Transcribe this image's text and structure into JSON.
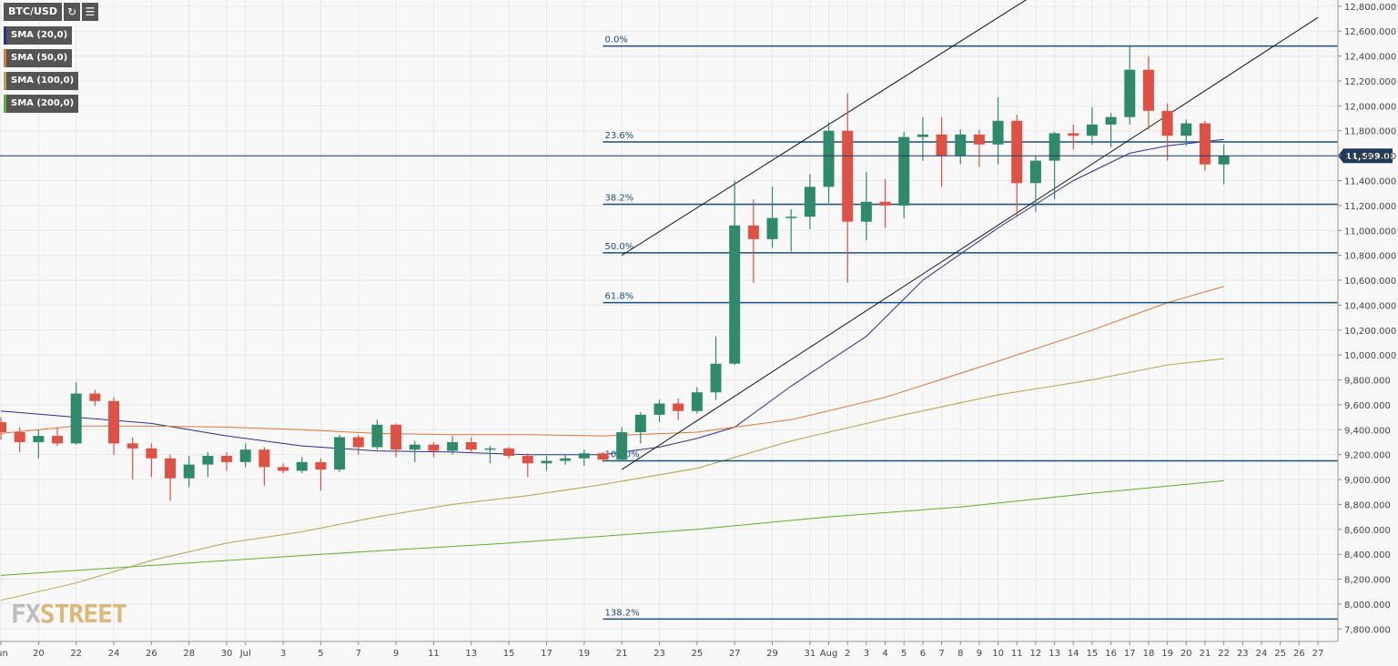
{
  "toolbar": {
    "symbol": "BTC/USD",
    "refresh_icon": "refresh-icon",
    "settings_icon": "chart-settings-icon"
  },
  "indicators": [
    {
      "label": "SMA (20,0)",
      "color": "#2b2f8f"
    },
    {
      "label": "SMA (50,0)",
      "color": "#d9773a"
    },
    {
      "label": "SMA (100,0)",
      "color": "#b5a24a"
    },
    {
      "label": "SMA (200,0)",
      "color": "#5fae2e"
    }
  ],
  "logo": {
    "part1": "FX",
    "part2": "STREET"
  },
  "chart_data": {
    "type": "candlestick",
    "y_axis": {
      "min": 7700,
      "max": 12850,
      "position": "right",
      "ticks": [
        "12,800.000",
        "12,600.000",
        "12,400.000",
        "12,200.000",
        "12,000.000",
        "11,800.000",
        "11,600.000",
        "11,400.000",
        "11,200.000",
        "11,000.000",
        "10,800.000",
        "10,600.000",
        "10,400.000",
        "10,200.000",
        "10,000.000",
        "9,800.000",
        "9,600.000",
        "9,400.000",
        "9,200.000",
        "9,000.000",
        "8,800.000",
        "8,600.000",
        "8,400.000",
        "8,200.000",
        "8,000.000",
        "7,800.000"
      ]
    },
    "x_axis": {
      "range": [
        "2020-06-18",
        "2020-08-27"
      ],
      "ticks": [
        {
          "date": "2020-06-18",
          "label": "Jun"
        },
        {
          "date": "2020-06-20",
          "label": "20"
        },
        {
          "date": "2020-06-22",
          "label": "22"
        },
        {
          "date": "2020-06-24",
          "label": "24"
        },
        {
          "date": "2020-06-26",
          "label": "26"
        },
        {
          "date": "2020-06-28",
          "label": "28"
        },
        {
          "date": "2020-06-30",
          "label": "30"
        },
        {
          "date": "2020-07-01",
          "label": "Jul"
        },
        {
          "date": "2020-07-03",
          "label": "3"
        },
        {
          "date": "2020-07-05",
          "label": "5"
        },
        {
          "date": "2020-07-07",
          "label": "7"
        },
        {
          "date": "2020-07-09",
          "label": "9"
        },
        {
          "date": "2020-07-11",
          "label": "11"
        },
        {
          "date": "2020-07-13",
          "label": "13"
        },
        {
          "date": "2020-07-15",
          "label": "15"
        },
        {
          "date": "2020-07-17",
          "label": "17"
        },
        {
          "date": "2020-07-19",
          "label": "19"
        },
        {
          "date": "2020-07-21",
          "label": "21"
        },
        {
          "date": "2020-07-23",
          "label": "23"
        },
        {
          "date": "2020-07-25",
          "label": "25"
        },
        {
          "date": "2020-07-27",
          "label": "27"
        },
        {
          "date": "2020-07-29",
          "label": "29"
        },
        {
          "date": "2020-07-31",
          "label": "31"
        },
        {
          "date": "2020-08-01",
          "label": "Aug"
        },
        {
          "date": "2020-08-02",
          "label": "2"
        },
        {
          "date": "2020-08-03",
          "label": "3"
        },
        {
          "date": "2020-08-04",
          "label": "4"
        },
        {
          "date": "2020-08-05",
          "label": "5"
        },
        {
          "date": "2020-08-06",
          "label": "6"
        },
        {
          "date": "2020-08-07",
          "label": "7"
        },
        {
          "date": "2020-08-08",
          "label": "8"
        },
        {
          "date": "2020-08-09",
          "label": "9"
        },
        {
          "date": "2020-08-10",
          "label": "10"
        },
        {
          "date": "2020-08-11",
          "label": "11"
        },
        {
          "date": "2020-08-12",
          "label": "12"
        },
        {
          "date": "2020-08-13",
          "label": "13"
        },
        {
          "date": "2020-08-14",
          "label": "14"
        },
        {
          "date": "2020-08-15",
          "label": "15"
        },
        {
          "date": "2020-08-16",
          "label": "16"
        },
        {
          "date": "2020-08-17",
          "label": "17"
        },
        {
          "date": "2020-08-18",
          "label": "18"
        },
        {
          "date": "2020-08-19",
          "label": "19"
        },
        {
          "date": "2020-08-20",
          "label": "20"
        },
        {
          "date": "2020-08-21",
          "label": "21"
        },
        {
          "date": "2020-08-22",
          "label": "22"
        },
        {
          "date": "2020-08-23",
          "label": "23"
        },
        {
          "date": "2020-08-24",
          "label": "24"
        },
        {
          "date": "2020-08-25",
          "label": "25"
        },
        {
          "date": "2020-08-26",
          "label": "26"
        },
        {
          "date": "2020-08-27",
          "label": "27"
        }
      ]
    },
    "candles": [
      {
        "d": "2020-06-18",
        "o": 9460,
        "h": 9500,
        "l": 9320,
        "c": 9380
      },
      {
        "d": "2020-06-19",
        "o": 9380,
        "h": 9420,
        "l": 9220,
        "c": 9300
      },
      {
        "d": "2020-06-20",
        "o": 9300,
        "h": 9400,
        "l": 9170,
        "c": 9350
      },
      {
        "d": "2020-06-21",
        "o": 9350,
        "h": 9420,
        "l": 9270,
        "c": 9290
      },
      {
        "d": "2020-06-22",
        "o": 9290,
        "h": 9780,
        "l": 9280,
        "c": 9690
      },
      {
        "d": "2020-06-23",
        "o": 9690,
        "h": 9720,
        "l": 9590,
        "c": 9630
      },
      {
        "d": "2020-06-24",
        "o": 9630,
        "h": 9660,
        "l": 9200,
        "c": 9290
      },
      {
        "d": "2020-06-25",
        "o": 9290,
        "h": 9340,
        "l": 9000,
        "c": 9250
      },
      {
        "d": "2020-06-26",
        "o": 9250,
        "h": 9290,
        "l": 9020,
        "c": 9170
      },
      {
        "d": "2020-06-27",
        "o": 9170,
        "h": 9200,
        "l": 8830,
        "c": 9010
      },
      {
        "d": "2020-06-28",
        "o": 9010,
        "h": 9190,
        "l": 8940,
        "c": 9120
      },
      {
        "d": "2020-06-29",
        "o": 9120,
        "h": 9220,
        "l": 9020,
        "c": 9190
      },
      {
        "d": "2020-06-30",
        "o": 9190,
        "h": 9220,
        "l": 9070,
        "c": 9140
      },
      {
        "d": "2020-07-01",
        "o": 9140,
        "h": 9290,
        "l": 9100,
        "c": 9240
      },
      {
        "d": "2020-07-02",
        "o": 9240,
        "h": 9260,
        "l": 8950,
        "c": 9100
      },
      {
        "d": "2020-07-03",
        "o": 9100,
        "h": 9130,
        "l": 9050,
        "c": 9070
      },
      {
        "d": "2020-07-04",
        "o": 9070,
        "h": 9180,
        "l": 9050,
        "c": 9140
      },
      {
        "d": "2020-07-05",
        "o": 9140,
        "h": 9170,
        "l": 8910,
        "c": 9080
      },
      {
        "d": "2020-07-06",
        "o": 9080,
        "h": 9360,
        "l": 9060,
        "c": 9340
      },
      {
        "d": "2020-07-07",
        "o": 9340,
        "h": 9360,
        "l": 9200,
        "c": 9260
      },
      {
        "d": "2020-07-08",
        "o": 9260,
        "h": 9480,
        "l": 9240,
        "c": 9440
      },
      {
        "d": "2020-07-09",
        "o": 9440,
        "h": 9450,
        "l": 9180,
        "c": 9240
      },
      {
        "d": "2020-07-10",
        "o": 9240,
        "h": 9310,
        "l": 9140,
        "c": 9280
      },
      {
        "d": "2020-07-11",
        "o": 9280,
        "h": 9300,
        "l": 9180,
        "c": 9230
      },
      {
        "d": "2020-07-12",
        "o": 9230,
        "h": 9350,
        "l": 9200,
        "c": 9300
      },
      {
        "d": "2020-07-13",
        "o": 9300,
        "h": 9340,
        "l": 9210,
        "c": 9240
      },
      {
        "d": "2020-07-14",
        "o": 9240,
        "h": 9270,
        "l": 9130,
        "c": 9250
      },
      {
        "d": "2020-07-15",
        "o": 9250,
        "h": 9260,
        "l": 9170,
        "c": 9190
      },
      {
        "d": "2020-07-16",
        "o": 9190,
        "h": 9210,
        "l": 9020,
        "c": 9130
      },
      {
        "d": "2020-07-17",
        "o": 9130,
        "h": 9190,
        "l": 9070,
        "c": 9150
      },
      {
        "d": "2020-07-18",
        "o": 9150,
        "h": 9200,
        "l": 9120,
        "c": 9170
      },
      {
        "d": "2020-07-19",
        "o": 9170,
        "h": 9240,
        "l": 9110,
        "c": 9210
      },
      {
        "d": "2020-07-20",
        "o": 9210,
        "h": 9220,
        "l": 9140,
        "c": 9160
      },
      {
        "d": "2020-07-21",
        "o": 9160,
        "h": 9420,
        "l": 9150,
        "c": 9380
      },
      {
        "d": "2020-07-22",
        "o": 9380,
        "h": 9540,
        "l": 9290,
        "c": 9520
      },
      {
        "d": "2020-07-23",
        "o": 9520,
        "h": 9640,
        "l": 9460,
        "c": 9610
      },
      {
        "d": "2020-07-24",
        "o": 9610,
        "h": 9650,
        "l": 9480,
        "c": 9550
      },
      {
        "d": "2020-07-25",
        "o": 9550,
        "h": 9740,
        "l": 9530,
        "c": 9700
      },
      {
        "d": "2020-07-26",
        "o": 9700,
        "h": 10150,
        "l": 9640,
        "c": 9930
      },
      {
        "d": "2020-07-27",
        "o": 9930,
        "h": 11400,
        "l": 9920,
        "c": 11040
      },
      {
        "d": "2020-07-28",
        "o": 11040,
        "h": 11250,
        "l": 10580,
        "c": 10930
      },
      {
        "d": "2020-07-29",
        "o": 10930,
        "h": 11350,
        "l": 10860,
        "c": 11100
      },
      {
        "d": "2020-07-30",
        "o": 11100,
        "h": 11170,
        "l": 10830,
        "c": 11110
      },
      {
        "d": "2020-07-31",
        "o": 11110,
        "h": 11450,
        "l": 11010,
        "c": 11350
      },
      {
        "d": "2020-08-01",
        "o": 11350,
        "h": 11870,
        "l": 11220,
        "c": 11800
      },
      {
        "d": "2020-08-02",
        "o": 11800,
        "h": 12100,
        "l": 10580,
        "c": 11070
      },
      {
        "d": "2020-08-03",
        "o": 11070,
        "h": 11470,
        "l": 10920,
        "c": 11230
      },
      {
        "d": "2020-08-04",
        "o": 11230,
        "h": 11410,
        "l": 11020,
        "c": 11200
      },
      {
        "d": "2020-08-05",
        "o": 11200,
        "h": 11790,
        "l": 11100,
        "c": 11750
      },
      {
        "d": "2020-08-06",
        "o": 11750,
        "h": 11910,
        "l": 11560,
        "c": 11770
      },
      {
        "d": "2020-08-07",
        "o": 11770,
        "h": 11910,
        "l": 11350,
        "c": 11600
      },
      {
        "d": "2020-08-08",
        "o": 11600,
        "h": 11810,
        "l": 11530,
        "c": 11770
      },
      {
        "d": "2020-08-09",
        "o": 11770,
        "h": 11810,
        "l": 11510,
        "c": 11690
      },
      {
        "d": "2020-08-10",
        "o": 11690,
        "h": 12070,
        "l": 11530,
        "c": 11880
      },
      {
        "d": "2020-08-11",
        "o": 11880,
        "h": 11930,
        "l": 11120,
        "c": 11380
      },
      {
        "d": "2020-08-12",
        "o": 11380,
        "h": 11600,
        "l": 11150,
        "c": 11560
      },
      {
        "d": "2020-08-13",
        "o": 11560,
        "h": 11790,
        "l": 11250,
        "c": 11780
      },
      {
        "d": "2020-08-14",
        "o": 11780,
        "h": 11850,
        "l": 11650,
        "c": 11760
      },
      {
        "d": "2020-08-15",
        "o": 11760,
        "h": 11990,
        "l": 11690,
        "c": 11850
      },
      {
        "d": "2020-08-16",
        "o": 11850,
        "h": 11940,
        "l": 11670,
        "c": 11910
      },
      {
        "d": "2020-08-17",
        "o": 11910,
        "h": 12480,
        "l": 11850,
        "c": 12290
      },
      {
        "d": "2020-08-18",
        "o": 12290,
        "h": 12400,
        "l": 11810,
        "c": 11960
      },
      {
        "d": "2020-08-19",
        "o": 11960,
        "h": 12020,
        "l": 11560,
        "c": 11760
      },
      {
        "d": "2020-08-20",
        "o": 11760,
        "h": 11890,
        "l": 11680,
        "c": 11860
      },
      {
        "d": "2020-08-21",
        "o": 11860,
        "h": 11880,
        "l": 11480,
        "c": 11530
      },
      {
        "d": "2020-08-22",
        "o": 11530,
        "h": 11690,
        "l": 11370,
        "c": 11600
      }
    ],
    "series": [
      {
        "name": "SMA (20,0)",
        "color": "#2b2f8f",
        "points": [
          [
            "2020-06-18",
            9550
          ],
          [
            "2020-06-22",
            9500
          ],
          [
            "2020-06-26",
            9450
          ],
          [
            "2020-06-30",
            9350
          ],
          [
            "2020-07-04",
            9270
          ],
          [
            "2020-07-08",
            9230
          ],
          [
            "2020-07-12",
            9220
          ],
          [
            "2020-07-16",
            9200
          ],
          [
            "2020-07-20",
            9200
          ],
          [
            "2020-07-23",
            9260
          ],
          [
            "2020-07-25",
            9330
          ],
          [
            "2020-07-27",
            9420
          ],
          [
            "2020-07-30",
            9750
          ],
          [
            "2020-08-03",
            10150
          ],
          [
            "2020-08-06",
            10600
          ],
          [
            "2020-08-10",
            11020
          ],
          [
            "2020-08-14",
            11400
          ],
          [
            "2020-08-17",
            11620
          ],
          [
            "2020-08-19",
            11680
          ],
          [
            "2020-08-22",
            11730
          ]
        ]
      },
      {
        "name": "SMA (50,0)",
        "color": "#d9773a",
        "points": [
          [
            "2020-06-18",
            9370
          ],
          [
            "2020-06-22",
            9430
          ],
          [
            "2020-06-26",
            9430
          ],
          [
            "2020-06-30",
            9420
          ],
          [
            "2020-07-04",
            9400
          ],
          [
            "2020-07-08",
            9370
          ],
          [
            "2020-07-12",
            9360
          ],
          [
            "2020-07-16",
            9360
          ],
          [
            "2020-07-20",
            9350
          ],
          [
            "2020-07-25",
            9380
          ],
          [
            "2020-07-30",
            9480
          ],
          [
            "2020-08-04",
            9660
          ],
          [
            "2020-08-10",
            9950
          ],
          [
            "2020-08-15",
            10200
          ],
          [
            "2020-08-19",
            10420
          ],
          [
            "2020-08-22",
            10550
          ]
        ]
      },
      {
        "name": "SMA (100,0)",
        "color": "#b5a24a",
        "points": [
          [
            "2020-06-18",
            8030
          ],
          [
            "2020-06-22",
            8170
          ],
          [
            "2020-06-26",
            8350
          ],
          [
            "2020-06-30",
            8490
          ],
          [
            "2020-07-04",
            8580
          ],
          [
            "2020-07-08",
            8700
          ],
          [
            "2020-07-12",
            8800
          ],
          [
            "2020-07-16",
            8870
          ],
          [
            "2020-07-20",
            8960
          ],
          [
            "2020-07-25",
            9090
          ],
          [
            "2020-07-30",
            9310
          ],
          [
            "2020-08-05",
            9520
          ],
          [
            "2020-08-10",
            9680
          ],
          [
            "2020-08-15",
            9800
          ],
          [
            "2020-08-19",
            9920
          ],
          [
            "2020-08-22",
            9970
          ]
        ]
      },
      {
        "name": "SMA (200,0)",
        "color": "#5fae2e",
        "points": [
          [
            "2020-06-18",
            8230
          ],
          [
            "2020-06-26",
            8310
          ],
          [
            "2020-07-05",
            8400
          ],
          [
            "2020-07-15",
            8490
          ],
          [
            "2020-07-25",
            8600
          ],
          [
            "2020-08-01",
            8700
          ],
          [
            "2020-08-08",
            8780
          ],
          [
            "2020-08-15",
            8890
          ],
          [
            "2020-08-22",
            8990
          ]
        ]
      }
    ],
    "fib_levels": [
      {
        "label": "0.0%",
        "price": 12480
      },
      {
        "label": "23.6%",
        "price": 11710
      },
      {
        "label": "38.2%",
        "price": 11210
      },
      {
        "label": "50.0%",
        "price": 10820
      },
      {
        "label": "61.8%",
        "price": 10420
      },
      {
        "label": "100.0%",
        "price": 9150
      },
      {
        "label": "138.2%",
        "price": 7880
      }
    ],
    "fib_start": "2020-07-20",
    "channel_lines": [
      {
        "from": [
          "2020-07-21",
          10800
        ],
        "to": [
          "2020-08-12",
          12900
        ]
      },
      {
        "from": [
          "2020-07-21",
          9080
        ],
        "to": [
          "2020-08-27",
          12710
        ]
      }
    ],
    "current_price": {
      "value": 11599.087,
      "label": "11,599.087"
    },
    "colors": {
      "up": "#2f8a6c",
      "down": "#de5246",
      "fib": "#1f4e79",
      "channel": "#111111",
      "grid": "#e7e7e7"
    }
  }
}
